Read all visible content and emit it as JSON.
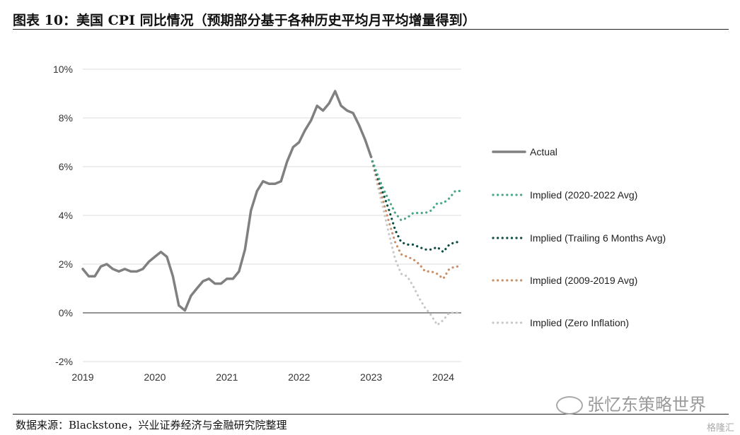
{
  "header": {
    "figure_title": "图表 10：美国 CPI 同比情况（预期部分基于各种历史平均月平均增量得到）"
  },
  "footer": {
    "source": "数据来源：Blackstone，兴业证券经济与金融研究院整理",
    "watermark": "张忆东策略世界",
    "brand": "格隆汇"
  },
  "chart_data": {
    "type": "line",
    "title": "",
    "xlabel": "",
    "ylabel": "",
    "x_ticks": [
      "2019",
      "2020",
      "2021",
      "2022",
      "2023",
      "2024"
    ],
    "y_ticks": [
      "10%",
      "8%",
      "6%",
      "4%",
      "2%",
      "0%",
      "-2%"
    ],
    "ylim": [
      -2,
      10
    ],
    "xlim": [
      2019.0,
      2024.25
    ],
    "grid": "horizontal",
    "legend_position": "right",
    "series": [
      {
        "name": "Actual",
        "style": "solid",
        "color": "#808080",
        "x": [
          2019.0,
          2019.083,
          2019.167,
          2019.25,
          2019.333,
          2019.417,
          2019.5,
          2019.583,
          2019.667,
          2019.75,
          2019.833,
          2019.917,
          2020.0,
          2020.083,
          2020.167,
          2020.25,
          2020.333,
          2020.417,
          2020.5,
          2020.583,
          2020.667,
          2020.75,
          2020.833,
          2020.917,
          2021.0,
          2021.083,
          2021.167,
          2021.25,
          2021.333,
          2021.417,
          2021.5,
          2021.583,
          2021.667,
          2021.75,
          2021.833,
          2021.917,
          2022.0,
          2022.083,
          2022.167,
          2022.25,
          2022.333,
          2022.417,
          2022.5,
          2022.583,
          2022.667,
          2022.75,
          2022.833,
          2022.917,
          2023.0
        ],
        "y": [
          1.8,
          1.5,
          1.5,
          1.9,
          2.0,
          1.8,
          1.7,
          1.8,
          1.7,
          1.7,
          1.8,
          2.1,
          2.3,
          2.5,
          2.3,
          1.5,
          0.3,
          0.1,
          0.7,
          1.0,
          1.3,
          1.4,
          1.2,
          1.2,
          1.4,
          1.4,
          1.7,
          2.6,
          4.2,
          5.0,
          5.4,
          5.3,
          5.3,
          5.4,
          6.2,
          6.8,
          7.0,
          7.5,
          7.9,
          8.5,
          8.3,
          8.6,
          9.1,
          8.5,
          8.3,
          8.2,
          7.7,
          7.1,
          6.4
        ]
      },
      {
        "name": "Implied (2020-2022 Avg)",
        "style": "dotted",
        "color": "#4aa88a",
        "x": [
          2023.0,
          2023.083,
          2023.167,
          2023.25,
          2023.333,
          2023.417,
          2023.5,
          2023.583,
          2023.667,
          2023.75,
          2023.833,
          2023.917,
          2024.0,
          2024.083,
          2024.167,
          2024.25
        ],
        "y": [
          6.4,
          5.7,
          5.1,
          4.6,
          4.1,
          3.8,
          3.9,
          4.1,
          4.1,
          4.1,
          4.2,
          4.5,
          4.5,
          4.7,
          5.0,
          5.0
        ]
      },
      {
        "name": "Implied (Trailing 6 Months Avg)",
        "style": "dotted",
        "color": "#0e4d44",
        "x": [
          2023.0,
          2023.083,
          2023.167,
          2023.25,
          2023.333,
          2023.417,
          2023.5,
          2023.583,
          2023.667,
          2023.75,
          2023.833,
          2023.917,
          2024.0,
          2024.083,
          2024.167,
          2024.25
        ],
        "y": [
          6.4,
          5.6,
          4.9,
          4.2,
          3.4,
          2.9,
          2.8,
          2.8,
          2.7,
          2.6,
          2.6,
          2.7,
          2.5,
          2.8,
          2.9,
          2.9
        ]
      },
      {
        "name": "Implied (2009-2019 Avg)",
        "style": "dotted",
        "color": "#c8916a",
        "x": [
          2023.0,
          2023.083,
          2023.167,
          2023.25,
          2023.333,
          2023.417,
          2023.5,
          2023.583,
          2023.667,
          2023.75,
          2023.833,
          2023.917,
          2024.0,
          2024.083,
          2024.167,
          2024.25
        ],
        "y": [
          6.4,
          5.5,
          4.6,
          3.7,
          2.9,
          2.4,
          2.3,
          2.2,
          2.0,
          1.7,
          1.7,
          1.6,
          1.4,
          1.8,
          1.9,
          1.9
        ]
      },
      {
        "name": "Implied (Zero Inflation)",
        "style": "dotted",
        "color": "#c8c8c8",
        "x": [
          2023.0,
          2023.083,
          2023.167,
          2023.25,
          2023.333,
          2023.417,
          2023.5,
          2023.583,
          2023.667,
          2023.75,
          2023.833,
          2023.917,
          2024.0,
          2024.083,
          2024.167,
          2024.25
        ],
        "y": [
          6.4,
          5.3,
          4.3,
          3.2,
          2.2,
          1.6,
          1.5,
          1.1,
          0.6,
          0.2,
          -0.1,
          -0.5,
          -0.3,
          0.0,
          0.0,
          0.0
        ]
      }
    ]
  }
}
